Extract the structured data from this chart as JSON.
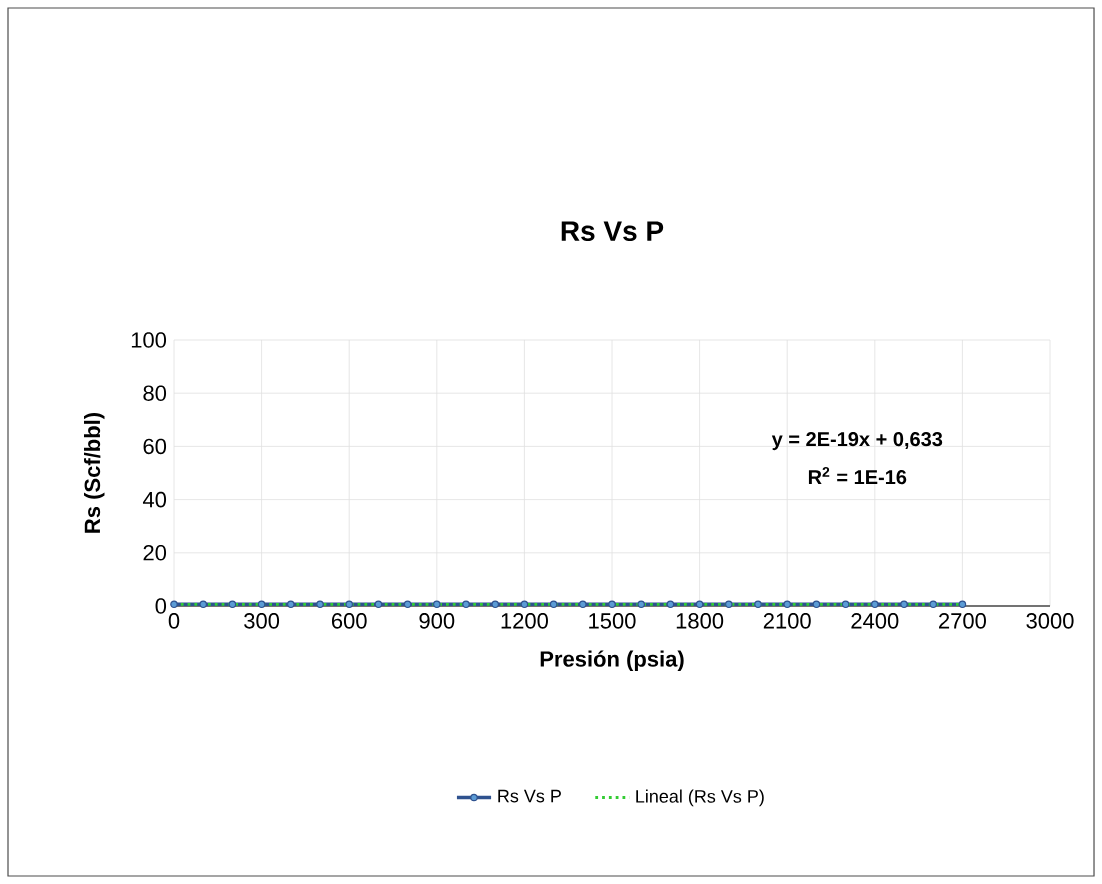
{
  "chart_data": {
    "type": "line",
    "title": "Rs Vs P",
    "xlabel": "Presión (psia)",
    "ylabel": "Rs (Scf/bbl)",
    "xlim": [
      0,
      3000
    ],
    "xticks": [
      0,
      300,
      600,
      900,
      1200,
      1500,
      1800,
      2100,
      2400,
      2700,
      3000
    ],
    "ylim": [
      0,
      100
    ],
    "yticks": [
      0,
      20,
      40,
      60,
      80,
      100
    ],
    "grid": true,
    "legend": "bottom",
    "annotations": [
      "y = 2E-19x + 0,633",
      "R$^{2}$ = 1E-16"
    ],
    "series": [
      {
        "name": "Rs Vs P",
        "color": "#2f528f",
        "marker": "circle",
        "line_style": "solid",
        "x": [
          0,
          100,
          200,
          300,
          400,
          500,
          600,
          700,
          800,
          900,
          1000,
          1100,
          1200,
          1300,
          1400,
          1500,
          1600,
          1700,
          1800,
          1900,
          2000,
          2100,
          2200,
          2300,
          2400,
          2500,
          2600,
          2700
        ],
        "values": [
          0.633,
          0.633,
          0.633,
          0.633,
          0.633,
          0.633,
          0.633,
          0.633,
          0.633,
          0.633,
          0.633,
          0.633,
          0.633,
          0.633,
          0.633,
          0.633,
          0.633,
          0.633,
          0.633,
          0.633,
          0.633,
          0.633,
          0.633,
          0.633,
          0.633,
          0.633,
          0.633,
          0.633
        ]
      },
      {
        "name": "Lineal (Rs Vs P)",
        "type": "line",
        "color": "#33cc33",
        "marker": "none",
        "line_style": "dotted",
        "x": [
          0,
          2700
        ],
        "values": [
          0.633,
          0.633
        ]
      }
    ]
  }
}
